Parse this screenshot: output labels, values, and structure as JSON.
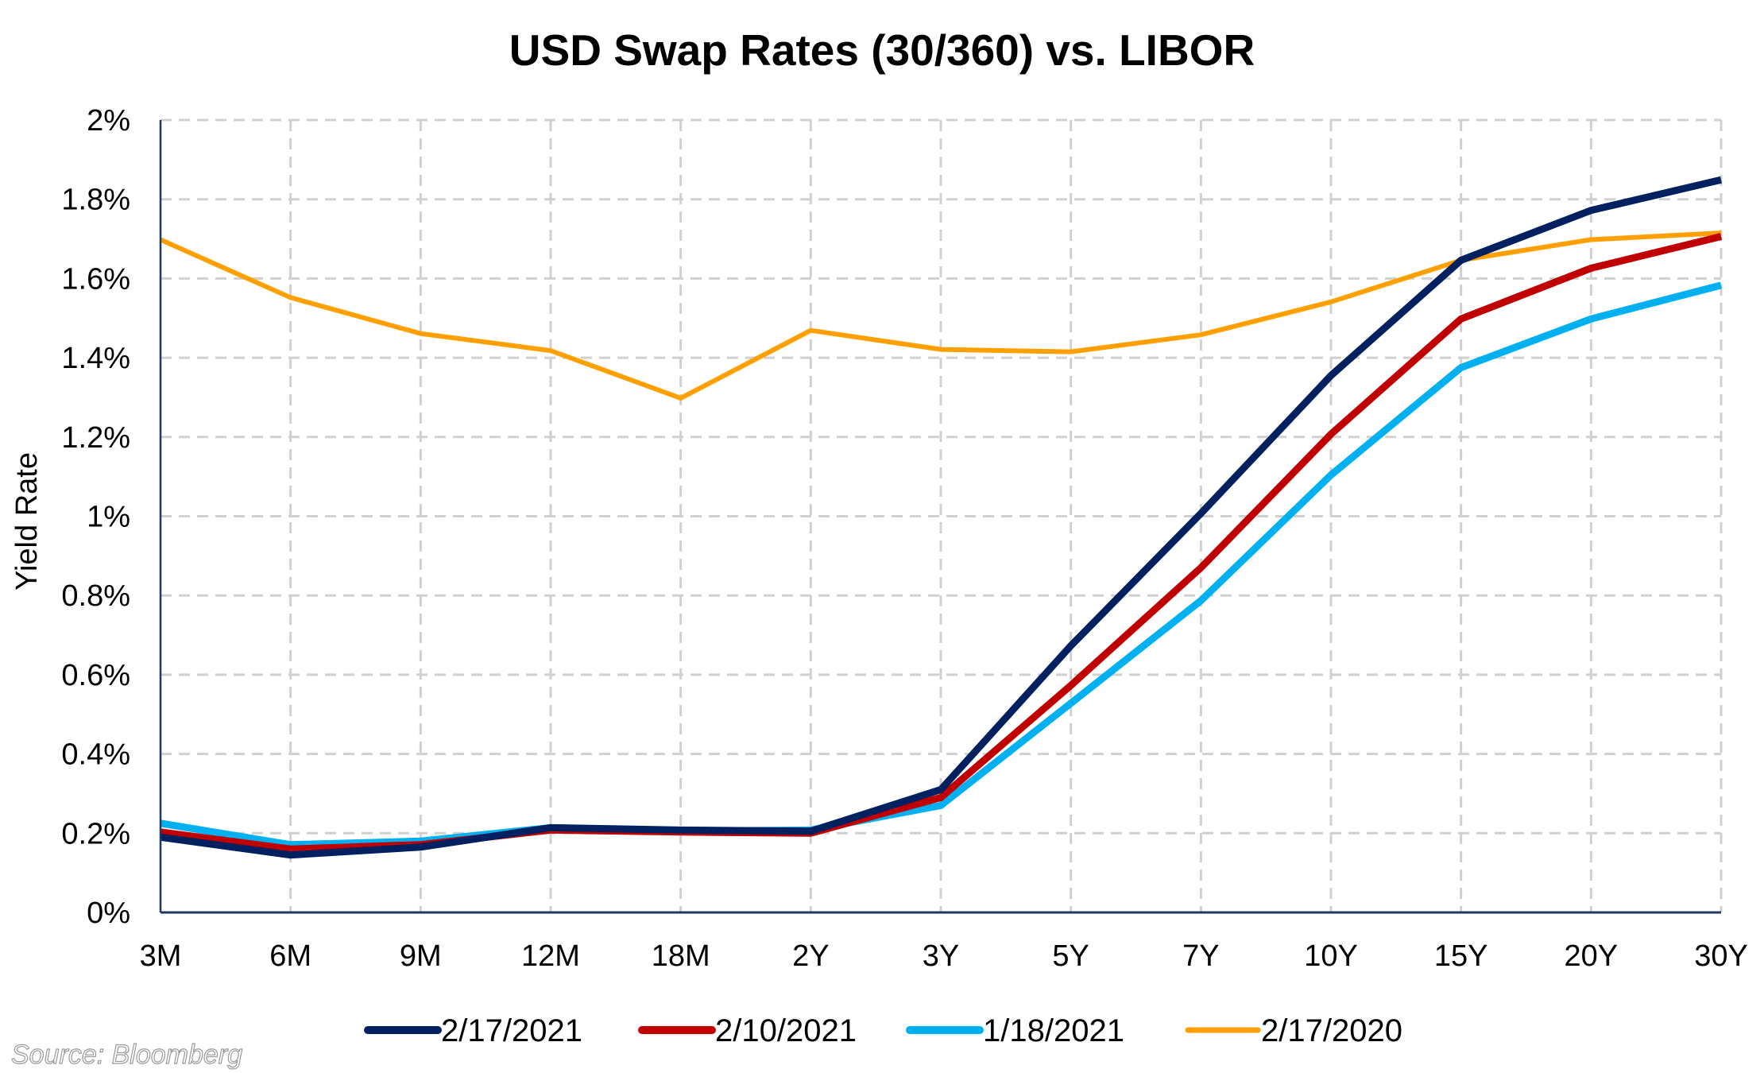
{
  "chart_data": {
    "type": "line",
    "title": "USD Swap Rates (30/360) vs. LIBOR",
    "xlabel": "",
    "ylabel": "Yield Rate",
    "ylim": [
      0,
      2
    ],
    "y_ticks": [
      0,
      0.2,
      0.4,
      0.6,
      0.8,
      1,
      1.2,
      1.4,
      1.6,
      1.8,
      2
    ],
    "y_tick_labels": [
      "0%",
      "0.2%",
      "0.4%",
      "0.6%",
      "0.8%",
      "1%",
      "1.2%",
      "1.4%",
      "1.6%",
      "1.8%",
      "2%"
    ],
    "grid": true,
    "legend_position": "bottom",
    "categories": [
      "3M",
      "6M",
      "9M",
      "12M",
      "18M",
      "2Y",
      "3Y",
      "5Y",
      "7Y",
      "10Y",
      "15Y",
      "20Y",
      "30Y"
    ],
    "series": [
      {
        "name": "2/17/2021",
        "color": "#002060",
        "values": [
          0.19,
          0.145,
          0.165,
          0.214,
          0.208,
          0.205,
          0.31,
          0.673,
          1.007,
          1.355,
          1.646,
          1.772,
          1.849
        ]
      },
      {
        "name": "2/10/2021",
        "color": "#C00000",
        "values": [
          0.203,
          0.16,
          0.171,
          0.208,
          0.203,
          0.2,
          0.29,
          0.573,
          0.87,
          1.207,
          1.498,
          1.626,
          1.706
        ]
      },
      {
        "name": "1/18/2021",
        "color": "#00B0F0",
        "values": [
          0.225,
          0.171,
          0.18,
          0.214,
          0.205,
          0.208,
          0.27,
          0.528,
          0.787,
          1.104,
          1.375,
          1.498,
          1.583
        ]
      },
      {
        "name": "2/17/2020",
        "color": "#FFA000",
        "values": [
          1.698,
          1.552,
          1.461,
          1.418,
          1.298,
          1.469,
          1.421,
          1.415,
          1.458,
          1.541,
          1.646,
          1.698,
          1.715
        ]
      }
    ],
    "source_note": "Source: Bloomberg",
    "axis_color": "#1F3864",
    "grid_color": "#D0D0D0"
  }
}
